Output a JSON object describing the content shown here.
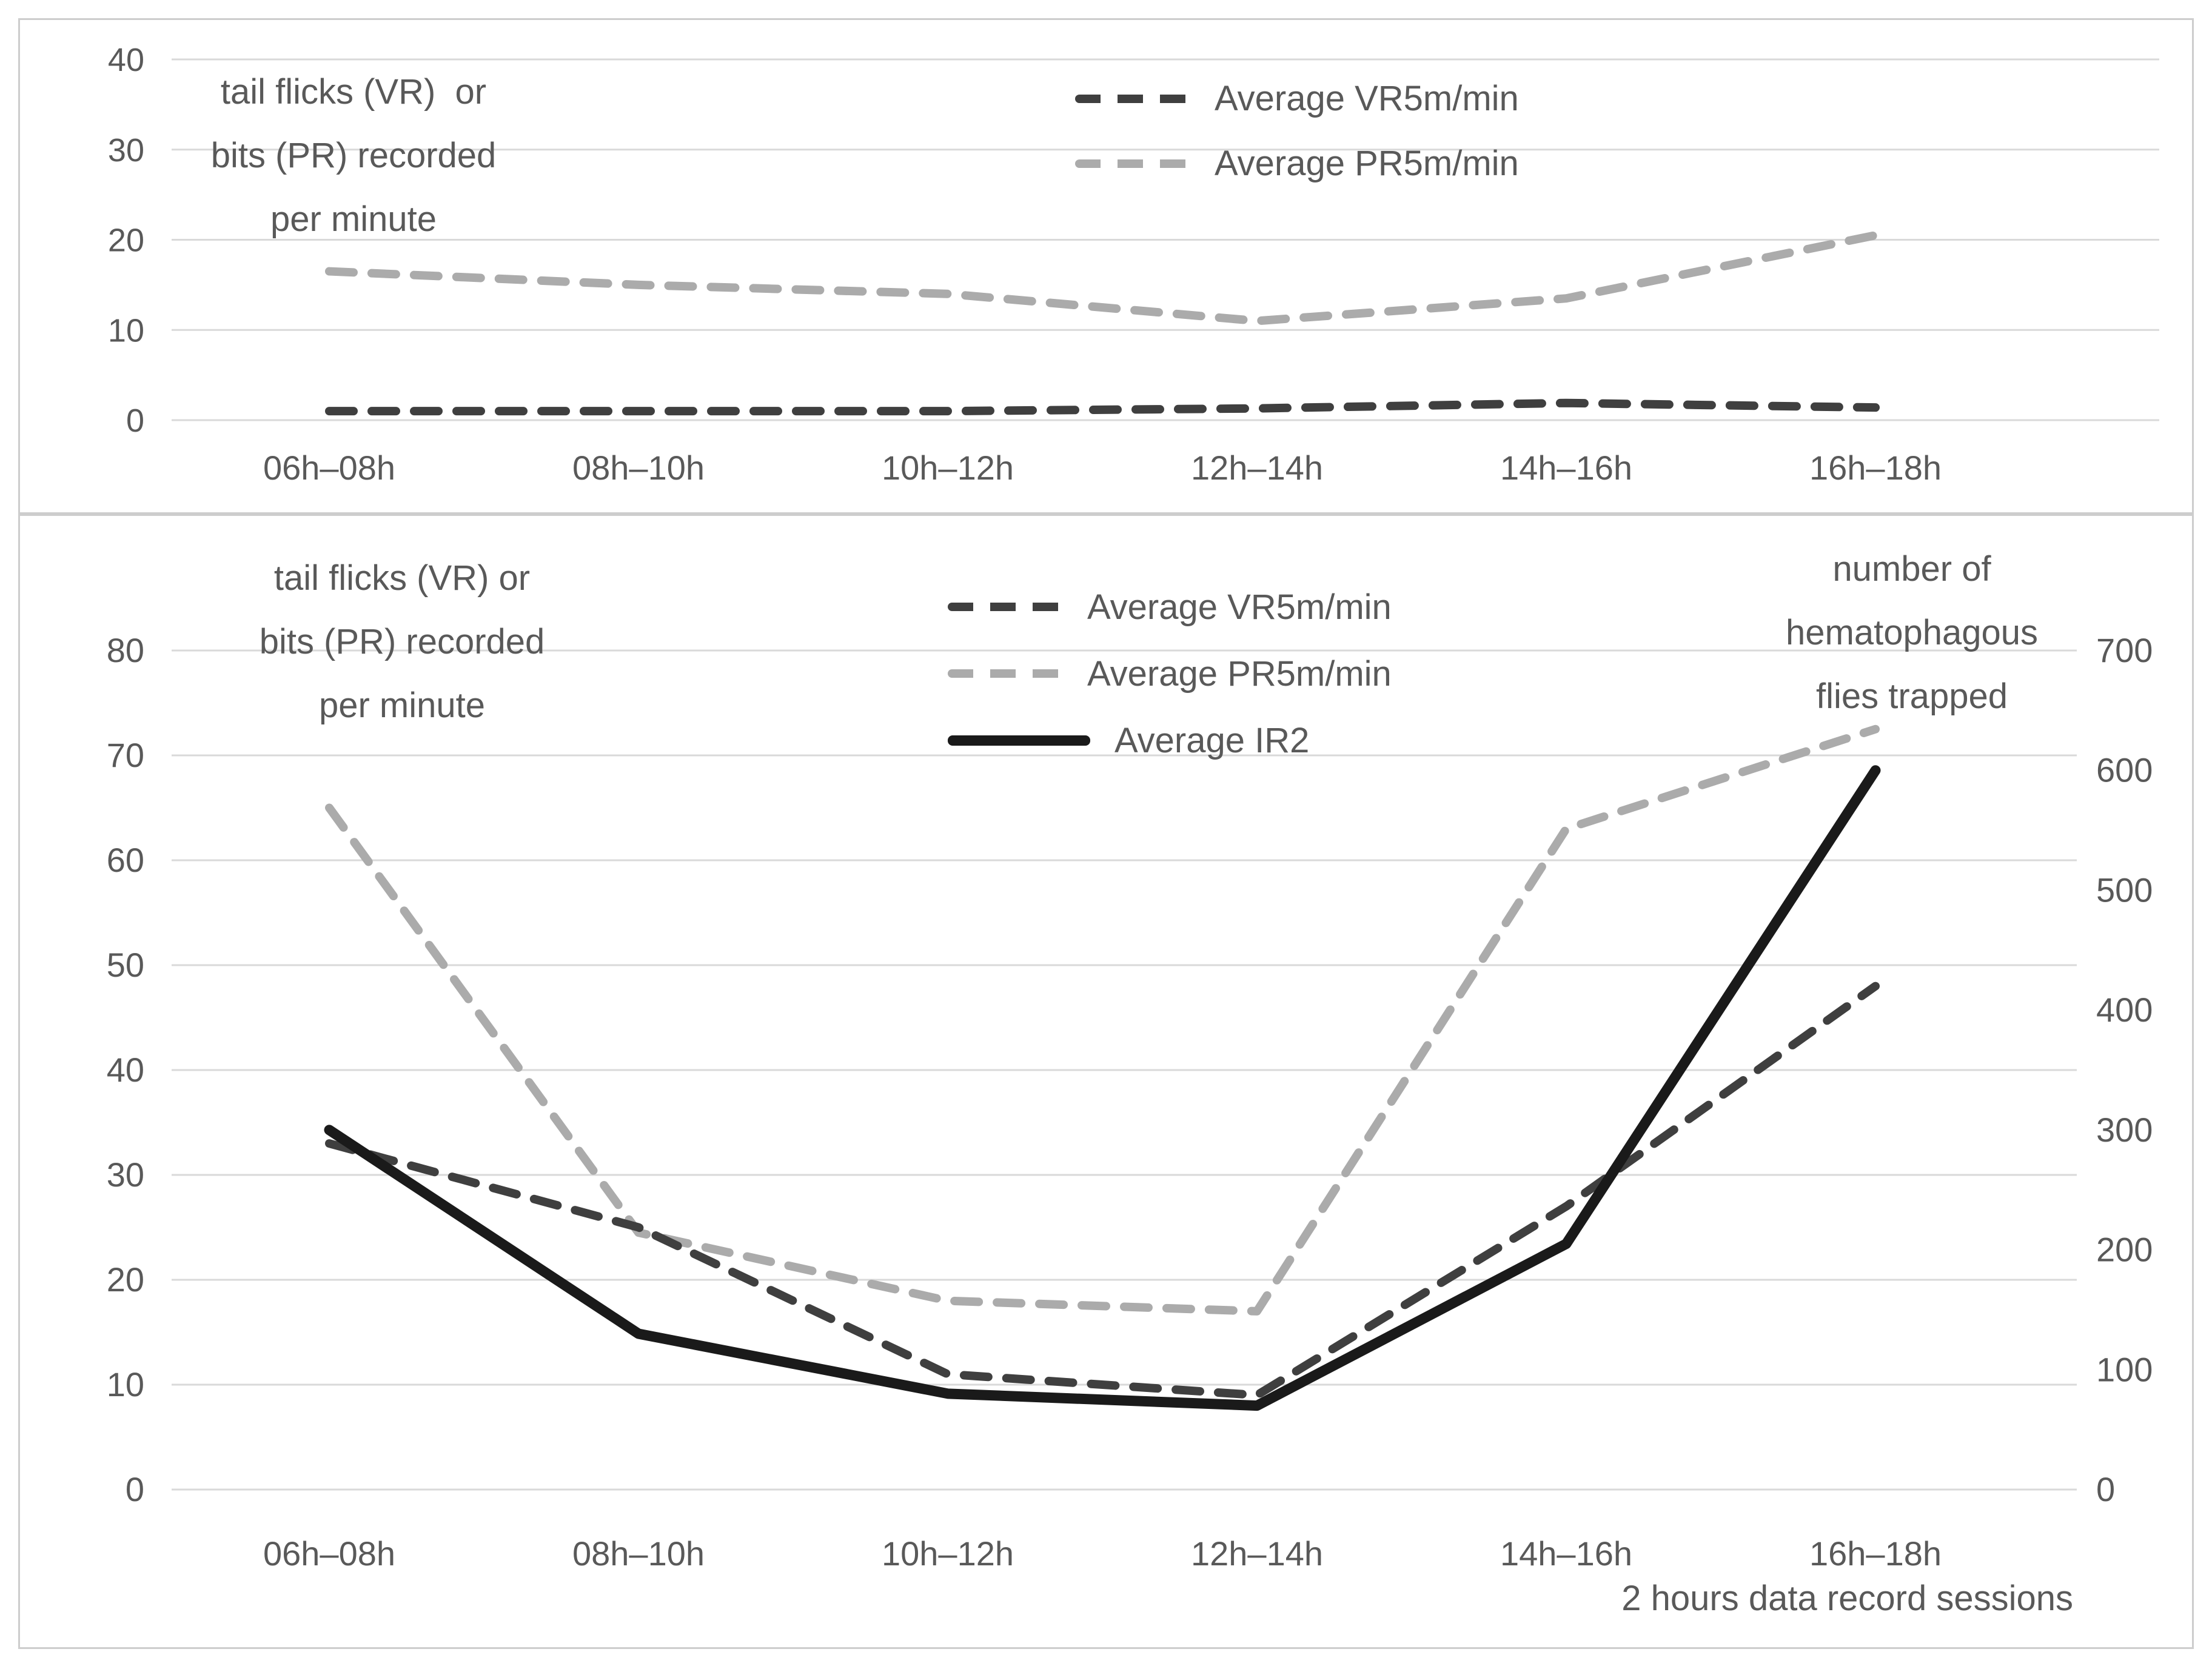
{
  "figure": {
    "background": "#ffffff",
    "border_color": "#cdcdcd",
    "grid_color": "#d9d9d9",
    "text_color": "#595959"
  },
  "chart_data": [
    {
      "type": "line",
      "panel": "top",
      "categories": [
        "06h–08h",
        "08h–10h",
        "10h–12h",
        "12h–14h",
        "14h–16h",
        "16h–18h"
      ],
      "label_lines": [
        "tail flicks (VR)  or",
        "bits (PR) recorded",
        "per minute"
      ],
      "ylabel": "tail flicks (VR) or bits (PR) recorded per minute",
      "xlabel": "",
      "y_ticks": [
        0,
        10,
        20,
        30,
        40
      ],
      "ylim": [
        0,
        44
      ],
      "grid": true,
      "legend_position": "top-center",
      "series": [
        {
          "id": "vr",
          "label": "Average VR5m/min",
          "style": "dashed",
          "color": "#3f3f3f",
          "axis": "left",
          "values": [
            1,
            1,
            1,
            1.3,
            1.9,
            1.4
          ]
        },
        {
          "id": "pr",
          "label": "Average PR5m/min",
          "style": "dashed",
          "color": "#ababab",
          "axis": "left",
          "values": [
            16.5,
            15,
            14,
            11,
            13.5,
            20.5
          ]
        }
      ]
    },
    {
      "type": "line",
      "panel": "bottom",
      "categories": [
        "06h–08h",
        "08h–10h",
        "10h–12h",
        "12h–14h",
        "14h–16h",
        "16h–18h"
      ],
      "label_lines": [
        "tail flicks (VR) or",
        "bits (PR) recorded",
        "per minute"
      ],
      "right_label_lines": [
        "number of",
        "hematophagous",
        "flies trapped"
      ],
      "x_title": "2 hours data record sessions",
      "grid": true,
      "legend_position": "top-center",
      "left_axis": {
        "ticks": [
          0,
          10,
          20,
          30,
          40,
          50,
          60,
          70,
          80
        ],
        "lim": [
          0,
          90
        ]
      },
      "right_axis": {
        "ticks": [
          0,
          100,
          200,
          300,
          400,
          500,
          600,
          700
        ],
        "lim": [
          0,
          787.5
        ]
      },
      "series": [
        {
          "id": "vr",
          "label": "Average VR5m/min",
          "style": "dashed",
          "color": "#3f3f3f",
          "axis": "left",
          "values": [
            33,
            25,
            11,
            9,
            27,
            48
          ]
        },
        {
          "id": "pr",
          "label": "Average PR5m/min",
          "style": "dashed",
          "color": "#ababab",
          "axis": "left",
          "values": [
            65,
            24.5,
            18,
            17,
            63,
            72.5
          ]
        },
        {
          "id": "ir2",
          "label": "Average IR2",
          "style": "solid",
          "color": "#1a1a1a",
          "axis": "right",
          "values": [
            300,
            130,
            80,
            70,
            205,
            600
          ]
        }
      ]
    }
  ]
}
